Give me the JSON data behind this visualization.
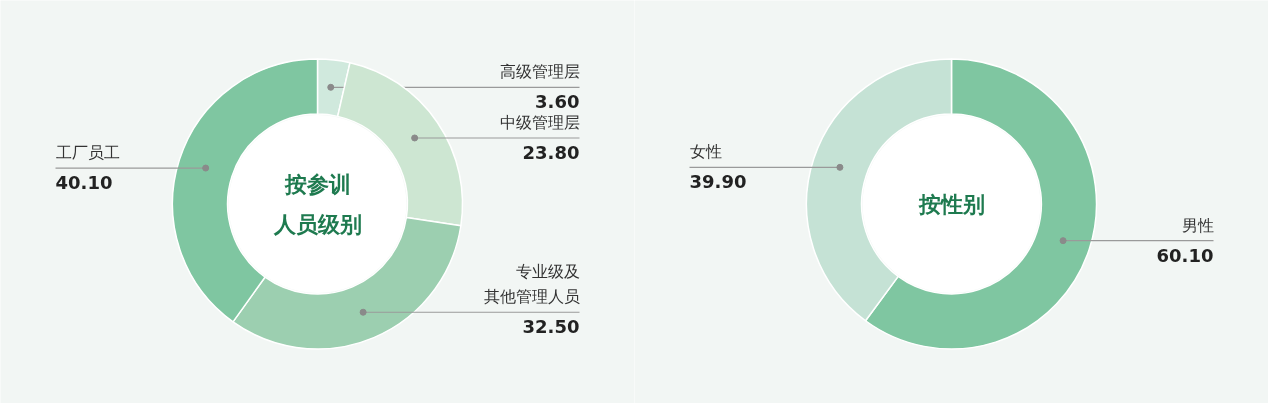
{
  "chart_data": [
    {
      "type": "donut",
      "title": "按参训人员级别",
      "categories": [
        "高级管理层",
        "中级管理层",
        "专业级及其他管理人员",
        "工厂员工"
      ],
      "values": [
        3.6,
        23.8,
        32.5,
        40.1
      ],
      "colors": [
        "#d0e9dd",
        "#cde6d2",
        "#9ccfb0",
        "#7fc6a1"
      ],
      "value_labels": [
        "3.60",
        "23.80",
        "32.50",
        "40.10"
      ]
    },
    {
      "type": "donut",
      "title": "按性别",
      "categories": [
        "男性",
        "女性"
      ],
      "values": [
        60.1,
        39.9
      ],
      "colors": [
        "#7fc6a1",
        "#c5e2d5"
      ],
      "value_labels": [
        "60.10",
        "39.90"
      ]
    }
  ]
}
